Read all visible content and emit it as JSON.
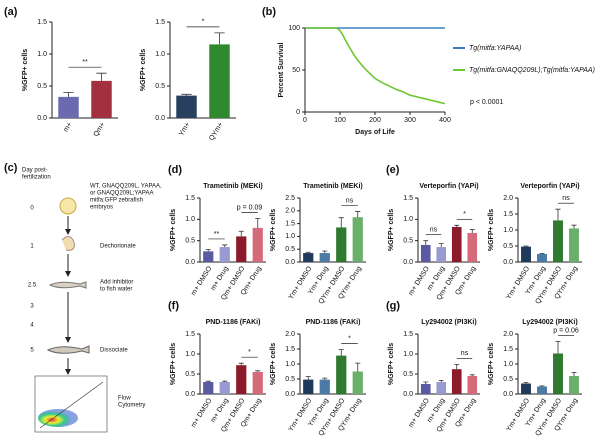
{
  "panels": {
    "a": "(a)",
    "b": "(b)",
    "c": "(c)",
    "d": "(d)",
    "e": "(e)",
    "f": "(f)",
    "g": "(g)"
  },
  "diagram": {
    "heading": [
      "Day post-",
      "fertilization"
    ],
    "steps": [
      {
        "day": "0",
        "label": [
          "WT, GNAQQ209L, YAPAA,",
          "or GNAQQ209L;YAPAA",
          "mitfa:GFP zebrafish",
          "embryos"
        ]
      },
      {
        "day": "1",
        "label": [
          "Dechorionate"
        ]
      },
      {
        "day": "2.5",
        "label": [
          "Add inhibitor",
          "to fish water"
        ]
      },
      {
        "day": "3"
      },
      {
        "day": "4"
      },
      {
        "day": "5",
        "label": [
          "Dissociate"
        ]
      },
      {
        "label": [
          "Flow",
          "Cytometry"
        ]
      }
    ]
  },
  "chart_data": [
    {
      "type": "bar",
      "ylabel": "%GFP+ cells",
      "categories": [
        "m+",
        "Qm+"
      ],
      "values": [
        0.33,
        0.58
      ],
      "errors": [
        0.07,
        0.12
      ],
      "colors": [
        "#6a6aae",
        "#a3303f"
      ],
      "ylim": [
        0,
        1.5
      ],
      "yticks": [
        {
          "value": 0,
          "label": "0.0"
        },
        {
          "value": 0.5,
          "label": "0.5"
        },
        {
          "value": 1,
          "label": "1.0"
        },
        {
          "value": 1.5,
          "label": "1.5"
        }
      ],
      "annotations": [
        {
          "text": "**",
          "between": [
            0,
            1
          ]
        }
      ]
    },
    {
      "type": "bar",
      "ylabel": "%GFP+ cells",
      "categories": [
        "Ym+",
        "QYm+"
      ],
      "values": [
        0.35,
        1.15
      ],
      "errors": [
        0.02,
        0.18
      ],
      "colors": [
        "#26405e",
        "#2f8a2f"
      ],
      "ylim": [
        0,
        1.5
      ],
      "yticks": [
        {
          "value": 0,
          "label": "0.0"
        },
        {
          "value": 0.5,
          "label": "0.5"
        },
        {
          "value": 1,
          "label": "1.0"
        },
        {
          "value": 1.5,
          "label": "1.5"
        }
      ],
      "annotations": [
        {
          "text": "*",
          "between": [
            0,
            1
          ]
        }
      ]
    },
    {
      "type": "line",
      "xlabel": "Days of Life",
      "ylabel": "Percent Survival",
      "xlim": [
        0,
        400
      ],
      "xticks": [
        0,
        100,
        200,
        300,
        400
      ],
      "ylim": [
        0,
        100
      ],
      "yticks": [
        0,
        50,
        100
      ],
      "legend": "right",
      "annotation": "p < 0.0001",
      "series": [
        {
          "name": "Tg(mitfa:YAPAA)",
          "color": "#3a7fc4",
          "x": [
            0,
            400
          ],
          "values": [
            100,
            100
          ]
        },
        {
          "name": "Tg(mitfa:GNAQQ209L);Tg(mitfa:YAPAA)",
          "color": "#6cc72e",
          "x": [
            0,
            90,
            100,
            110,
            120,
            130,
            140,
            150,
            160,
            170,
            180,
            190,
            200,
            220,
            240,
            260,
            280,
            300,
            320,
            340,
            360,
            380,
            400
          ],
          "values": [
            100,
            100,
            97,
            90,
            82,
            75,
            68,
            62,
            57,
            52,
            48,
            44,
            40,
            35,
            31,
            27,
            24,
            20,
            18,
            16,
            14,
            12,
            10
          ]
        }
      ]
    },
    {
      "type": "bar",
      "title": "Trametinib (MEKi)",
      "ylabel": "%GFP+ cells",
      "categories": [
        "m+ DMSO",
        "m+ Drug",
        "Qm+ DMSO",
        "Qm+ Drug"
      ],
      "values": [
        0.25,
        0.35,
        0.6,
        0.8
      ],
      "errors": [
        0.04,
        0.05,
        0.12,
        0.22
      ],
      "colors": [
        "#5a5aa0",
        "#9a9ad2",
        "#8b1a2a",
        "#d46a7a"
      ],
      "ylim": [
        0,
        1.5
      ],
      "yticks": [
        {
          "value": 0,
          "label": "0.0"
        },
        {
          "value": 0.5,
          "label": "0.5"
        },
        {
          "value": 1,
          "label": "1.0"
        },
        {
          "value": 1.5,
          "label": "1.5"
        }
      ],
      "annotations": [
        {
          "text": "**",
          "between": [
            0,
            1
          ]
        },
        {
          "text": "p = 0.09",
          "between": [
            2,
            3
          ]
        }
      ]
    },
    {
      "type": "bar",
      "title": "Trametinib (MEKi)",
      "ylabel": "%GFP+ cells",
      "categories": [
        "Ym+ DMSO",
        "Ym+ Drug",
        "QYm+ DMSO",
        "QYm+ Drug"
      ],
      "values": [
        0.35,
        0.35,
        1.35,
        1.75
      ],
      "errors": [
        0.03,
        0.08,
        0.38,
        0.22
      ],
      "colors": [
        "#1f3a5a",
        "#4a7aa5",
        "#2f7a2f",
        "#6ab06a"
      ],
      "ylim": [
        0,
        2.5
      ],
      "yticks": [
        {
          "value": 0,
          "label": "0.0"
        },
        {
          "value": 0.5,
          "label": "0.5"
        },
        {
          "value": 1,
          "label": "1.0"
        },
        {
          "value": 1.5,
          "label": "1.5"
        },
        {
          "value": 2,
          "label": "2.0"
        },
        {
          "value": 2.5,
          "label": "2.5"
        }
      ],
      "annotations": [
        {
          "text": "ns",
          "between": [
            2,
            3
          ]
        }
      ]
    },
    {
      "type": "bar",
      "title": "Verteporfin (YAPi)",
      "ylabel": "%GFP+ cells",
      "categories": [
        "m+ DMSO",
        "m+ Drug",
        "Qm+ DMSO",
        "Qm+ Drug"
      ],
      "values": [
        0.4,
        0.35,
        0.82,
        0.68
      ],
      "errors": [
        0.1,
        0.08,
        0.04,
        0.08
      ],
      "colors": [
        "#5a5aa0",
        "#9a9ad2",
        "#8b1a2a",
        "#d46a7a"
      ],
      "ylim": [
        0,
        1.5
      ],
      "yticks": [
        {
          "value": 0,
          "label": "0.0"
        },
        {
          "value": 0.5,
          "label": "0.5"
        },
        {
          "value": 1,
          "label": "1.0"
        },
        {
          "value": 1.5,
          "label": "1.5"
        }
      ],
      "annotations": [
        {
          "text": "ns",
          "between": [
            0,
            1
          ]
        },
        {
          "text": "*",
          "between": [
            2,
            3
          ]
        }
      ]
    },
    {
      "type": "bar",
      "title": "Verteporfin (YAPi)",
      "ylabel": "%GFP+ cells",
      "categories": [
        "Ym+ DMSO",
        "Ym+ Drug",
        "QYm+ DMSO",
        "QYm+ Drug"
      ],
      "values": [
        0.48,
        0.25,
        1.3,
        1.05
      ],
      "errors": [
        0.02,
        0.02,
        0.35,
        0.1
      ],
      "colors": [
        "#1f3a5a",
        "#4a7aa5",
        "#2f7a2f",
        "#6ab06a"
      ],
      "ylim": [
        0,
        2
      ],
      "yticks": [
        {
          "value": 0,
          "label": "0.0"
        },
        {
          "value": 0.5,
          "label": "0.5"
        },
        {
          "value": 1,
          "label": "1.0"
        },
        {
          "value": 1.5,
          "label": "1.5"
        },
        {
          "value": 2,
          "label": "2.0"
        }
      ],
      "annotations": [
        {
          "text": "ns",
          "between": [
            2,
            3
          ]
        }
      ]
    },
    {
      "type": "bar",
      "title": "PND-1186 (FAKi)",
      "ylabel": "%GFP+ cells",
      "categories": [
        "m+ DMSO",
        "m+ Drug",
        "Qm+ DMSO",
        "Qm+ Drug"
      ],
      "values": [
        0.3,
        0.3,
        0.72,
        0.55
      ],
      "errors": [
        0.02,
        0.02,
        0.05,
        0.03
      ],
      "colors": [
        "#5a5aa0",
        "#9a9ad2",
        "#8b1a2a",
        "#d46a7a"
      ],
      "ylim": [
        0,
        1.5
      ],
      "yticks": [
        {
          "value": 0,
          "label": "0.0"
        },
        {
          "value": 0.5,
          "label": "0.5"
        },
        {
          "value": 1,
          "label": "1.0"
        },
        {
          "value": 1.5,
          "label": "1.5"
        }
      ],
      "annotations": [
        {
          "text": "*",
          "between": [
            2,
            3
          ]
        }
      ]
    },
    {
      "type": "bar",
      "title": "PND-1186 (FAKi)",
      "ylabel": "%GFP+ cells",
      "categories": [
        "Ym+ DMSO",
        "Ym+ Drug",
        "QYm+ DMSO",
        "QYm+ Drug"
      ],
      "values": [
        0.48,
        0.48,
        1.28,
        0.75
      ],
      "errors": [
        0.1,
        0.05,
        0.2,
        0.28
      ],
      "colors": [
        "#1f3a5a",
        "#4a7aa5",
        "#2f7a2f",
        "#6ab06a"
      ],
      "ylim": [
        0,
        2
      ],
      "yticks": [
        {
          "value": 0,
          "label": "0.0"
        },
        {
          "value": 0.5,
          "label": "0.5"
        },
        {
          "value": 1,
          "label": "1.0"
        },
        {
          "value": 1.5,
          "label": "1.5"
        },
        {
          "value": 2,
          "label": "2.0"
        }
      ],
      "annotations": [
        {
          "text": "*",
          "between": [
            2,
            3
          ]
        }
      ]
    },
    {
      "type": "bar",
      "title": "Ly294002 (PI3Ki)",
      "ylabel": "%GFP+ cells",
      "categories": [
        "m+ DMSO",
        "m+ Drug",
        "Qm+ DMSO",
        "Qm+ Drug"
      ],
      "values": [
        0.25,
        0.3,
        0.62,
        0.45
      ],
      "errors": [
        0.05,
        0.04,
        0.12,
        0.03
      ],
      "colors": [
        "#5a5aa0",
        "#9a9ad2",
        "#8b1a2a",
        "#d46a7a"
      ],
      "ylim": [
        0,
        1.5
      ],
      "yticks": [
        {
          "value": 0,
          "label": "0.0"
        },
        {
          "value": 0.5,
          "label": "0.5"
        },
        {
          "value": 1,
          "label": "1.0"
        },
        {
          "value": 1.5,
          "label": "1.5"
        }
      ],
      "annotations": [
        {
          "text": "ns",
          "between": [
            2,
            3
          ]
        }
      ]
    },
    {
      "type": "bar",
      "title": "Ly294002 (PI3Ki)",
      "ylabel": "%GFP+ cells",
      "categories": [
        "Ym+ DMSO",
        "Ym+ Drug",
        "QYm+ DMSO",
        "QYm+ Drug"
      ],
      "values": [
        0.35,
        0.25,
        1.35,
        0.6
      ],
      "errors": [
        0.03,
        0.02,
        0.4,
        0.12
      ],
      "colors": [
        "#1f3a5a",
        "#4a7aa5",
        "#2f7a2f",
        "#6ab06a"
      ],
      "ylim": [
        0,
        2
      ],
      "yticks": [
        {
          "value": 0,
          "label": "0.0"
        },
        {
          "value": 0.5,
          "label": "0.5"
        },
        {
          "value": 1,
          "label": "1.0"
        },
        {
          "value": 1.5,
          "label": "1.5"
        },
        {
          "value": 2,
          "label": "2.0"
        }
      ],
      "annotations": [
        {
          "text": "p = 0.06",
          "between": [
            2,
            3
          ]
        }
      ]
    }
  ]
}
